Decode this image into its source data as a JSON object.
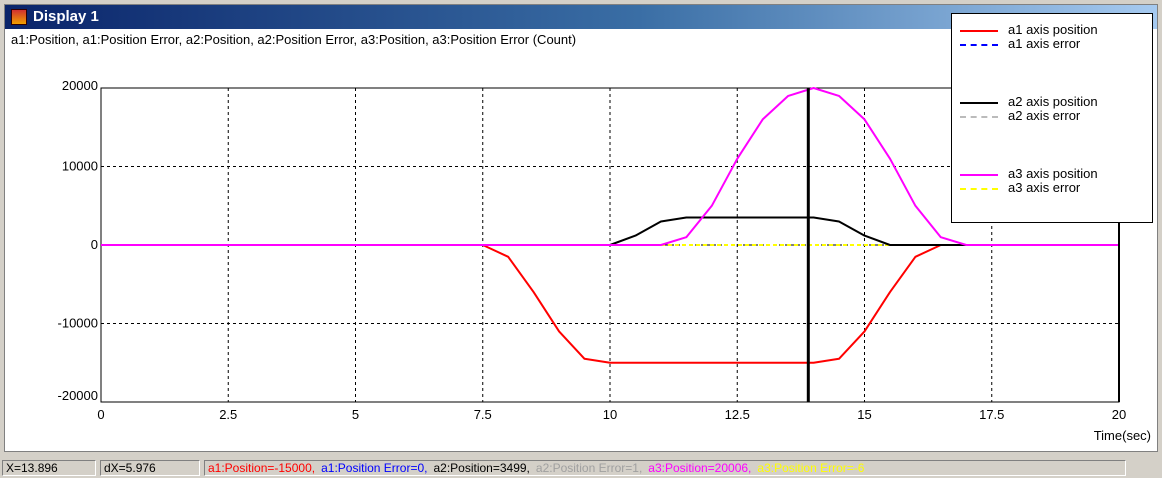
{
  "window": {
    "title": "Display 1"
  },
  "subtitle": "a1:Position, a1:Position Error, a2:Position, a2:Position Error, a3:Position, a3:Position Error (Count)",
  "legend": {
    "items": [
      {
        "pos_label": "a1 axis position",
        "err_label": "a1 axis error",
        "pos_color": "#ff0000",
        "err_color": "#0000ff"
      },
      {
        "pos_label": "a2 axis position",
        "err_label": "a2 axis error",
        "pos_color": "#000000",
        "err_color": "#bbbbbb"
      },
      {
        "pos_label": "a3 axis position",
        "err_label": "a3 axis error",
        "pos_color": "#ff00ff",
        "err_color": "#ffff00"
      }
    ]
  },
  "status": {
    "x": "X=13.896",
    "dx": "dX=5.976",
    "values": [
      {
        "text": "a1:Position=-15000,",
        "color": "#ff0000"
      },
      {
        "text": "a1:Position Error=0,",
        "color": "#0000ff"
      },
      {
        "text": "a2:Position=3499,",
        "color": "#000000"
      },
      {
        "text": "a2:Position Error=1,",
        "color": "#a0a0a0"
      },
      {
        "text": "a3:Position=20006,",
        "color": "#ff00ff"
      },
      {
        "text": "a3:Position Error=-6",
        "color": "#ffff00"
      }
    ]
  },
  "chart_data": {
    "type": "line",
    "xlabel": "Time(sec)",
    "ylabel": "",
    "xlim": [
      0,
      20
    ],
    "ylim": [
      -20000,
      20000
    ],
    "xticks": [
      "0",
      "2.5",
      "5",
      "7.5",
      "10",
      "12.5",
      "15",
      "17.5",
      "20"
    ],
    "xtick_values": [
      0,
      2.5,
      5,
      7.5,
      10,
      12.5,
      15,
      17.5,
      20
    ],
    "yticks": [
      "20000",
      "10000",
      "0",
      "-10000",
      "-20000"
    ],
    "ytick_values": [
      20000,
      10000,
      0,
      -10000,
      -20000
    ],
    "grid": true,
    "cursor_x": [
      13.896,
      20
    ],
    "series": [
      {
        "name": "a1 axis position",
        "color": "#ff0000",
        "style": "solid",
        "x": [
          0,
          7.5,
          8,
          8.5,
          9,
          9.5,
          10,
          12.5,
          14,
          14.5,
          15,
          15.5,
          16,
          16.5,
          17,
          20
        ],
        "y": [
          0,
          0,
          -1500,
          -6000,
          -11000,
          -14500,
          -15000,
          -15000,
          -15000,
          -14500,
          -11000,
          -6000,
          -1500,
          0,
          0,
          0
        ]
      },
      {
        "name": "a1 axis error",
        "color": "#0000ff",
        "style": "dashed",
        "x": [
          0,
          20
        ],
        "y": [
          0,
          0
        ]
      },
      {
        "name": "a2 axis position",
        "color": "#000000",
        "style": "solid",
        "x": [
          0,
          10,
          10.5,
          11,
          11.5,
          12,
          14,
          14.5,
          15,
          15.5,
          20
        ],
        "y": [
          0,
          0,
          1200,
          3000,
          3500,
          3500,
          3500,
          3000,
          1200,
          0,
          0
        ]
      },
      {
        "name": "a2 axis error",
        "color": "#bbbbbb",
        "style": "dashed",
        "x": [
          0,
          20
        ],
        "y": [
          0,
          0
        ]
      },
      {
        "name": "a3 axis position",
        "color": "#ff00ff",
        "style": "solid",
        "x": [
          0,
          11,
          11.5,
          12,
          12.5,
          13,
          13.5,
          14,
          14.5,
          15,
          15.5,
          16,
          16.5,
          17,
          20
        ],
        "y": [
          0,
          0,
          1000,
          5000,
          11000,
          16000,
          19000,
          20000,
          19000,
          16000,
          11000,
          5000,
          1000,
          0,
          0
        ]
      },
      {
        "name": "a3 axis error",
        "color": "#ffff00",
        "style": "dashed",
        "x": [
          0,
          20
        ],
        "y": [
          0,
          0
        ]
      }
    ]
  }
}
